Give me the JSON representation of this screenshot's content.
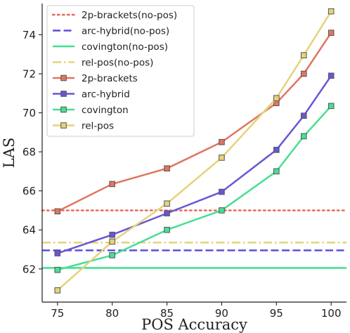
{
  "chart_data": {
    "type": "line",
    "xlabel": "POS Accuracy",
    "ylabel": "LAS",
    "xlim": [
      73.6,
      101.4
    ],
    "ylim": [
      60.3,
      75.6
    ],
    "xticks": [
      75,
      80,
      85,
      90,
      95,
      100
    ],
    "yticks": [
      62,
      64,
      66,
      68,
      70,
      72,
      74
    ],
    "grid": false,
    "legend_position": "top-left",
    "x": [
      75,
      80,
      85,
      90,
      95,
      97.5,
      100
    ],
    "baselines": [
      {
        "name": "2p-brackets(no-pos)",
        "value": 65.0,
        "color": "#e8685a",
        "style": "dotted"
      },
      {
        "name": "arc-hybrid(no-pos)",
        "value": 62.95,
        "color": "#5b4fd9",
        "style": "dashed"
      },
      {
        "name": "covington(no-pos)",
        "value": 62.05,
        "color": "#3fe08f",
        "style": "solid"
      },
      {
        "name": "rel-pos(no-pos)",
        "value": 63.35,
        "color": "#e3d47a",
        "style": "dashdot"
      }
    ],
    "series": [
      {
        "name": "2p-brackets",
        "color": "#e07560",
        "values": [
          64.95,
          66.35,
          67.15,
          68.5,
          70.5,
          72.0,
          74.1
        ]
      },
      {
        "name": "arc-hybrid",
        "color": "#6a55d6",
        "values": [
          62.8,
          63.75,
          64.85,
          65.95,
          68.1,
          69.85,
          71.9
        ]
      },
      {
        "name": "covington",
        "color": "#45df95",
        "values": [
          61.95,
          62.7,
          64.0,
          65.0,
          67.0,
          68.8,
          70.35
        ]
      },
      {
        "name": "rel-pos",
        "color": "#e6d27a",
        "values": [
          60.9,
          63.4,
          65.35,
          67.7,
          70.75,
          72.95,
          75.2
        ]
      }
    ]
  }
}
